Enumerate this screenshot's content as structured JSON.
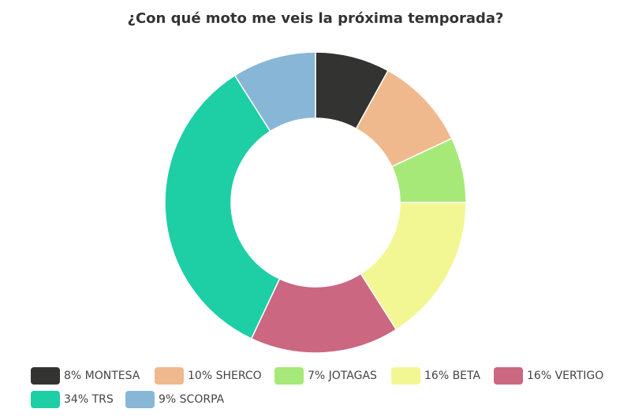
{
  "chart_data": {
    "type": "pie",
    "variant": "donut",
    "title": "¿Con qué moto me veis la próxima temporada?",
    "categories": [
      "MONTESA",
      "SHERCO",
      "JOTAGAS",
      "BETA",
      "VERTIGO",
      "TRS",
      "SCORPA"
    ],
    "values": [
      8,
      10,
      7,
      16,
      16,
      34,
      9
    ],
    "unit": "%",
    "colors": [
      "#333331",
      "#f0b98d",
      "#a6e978",
      "#f2f793",
      "#cb6781",
      "#1ecea5",
      "#88b6d6"
    ],
    "legend_labels": [
      "8% MONTESA",
      "10% SHERCO",
      "7% JOTAGAS",
      "16% BETA",
      "16% VERTIGO",
      "34% TRS",
      "9% SCORPA"
    ],
    "legend_position": "bottom"
  }
}
